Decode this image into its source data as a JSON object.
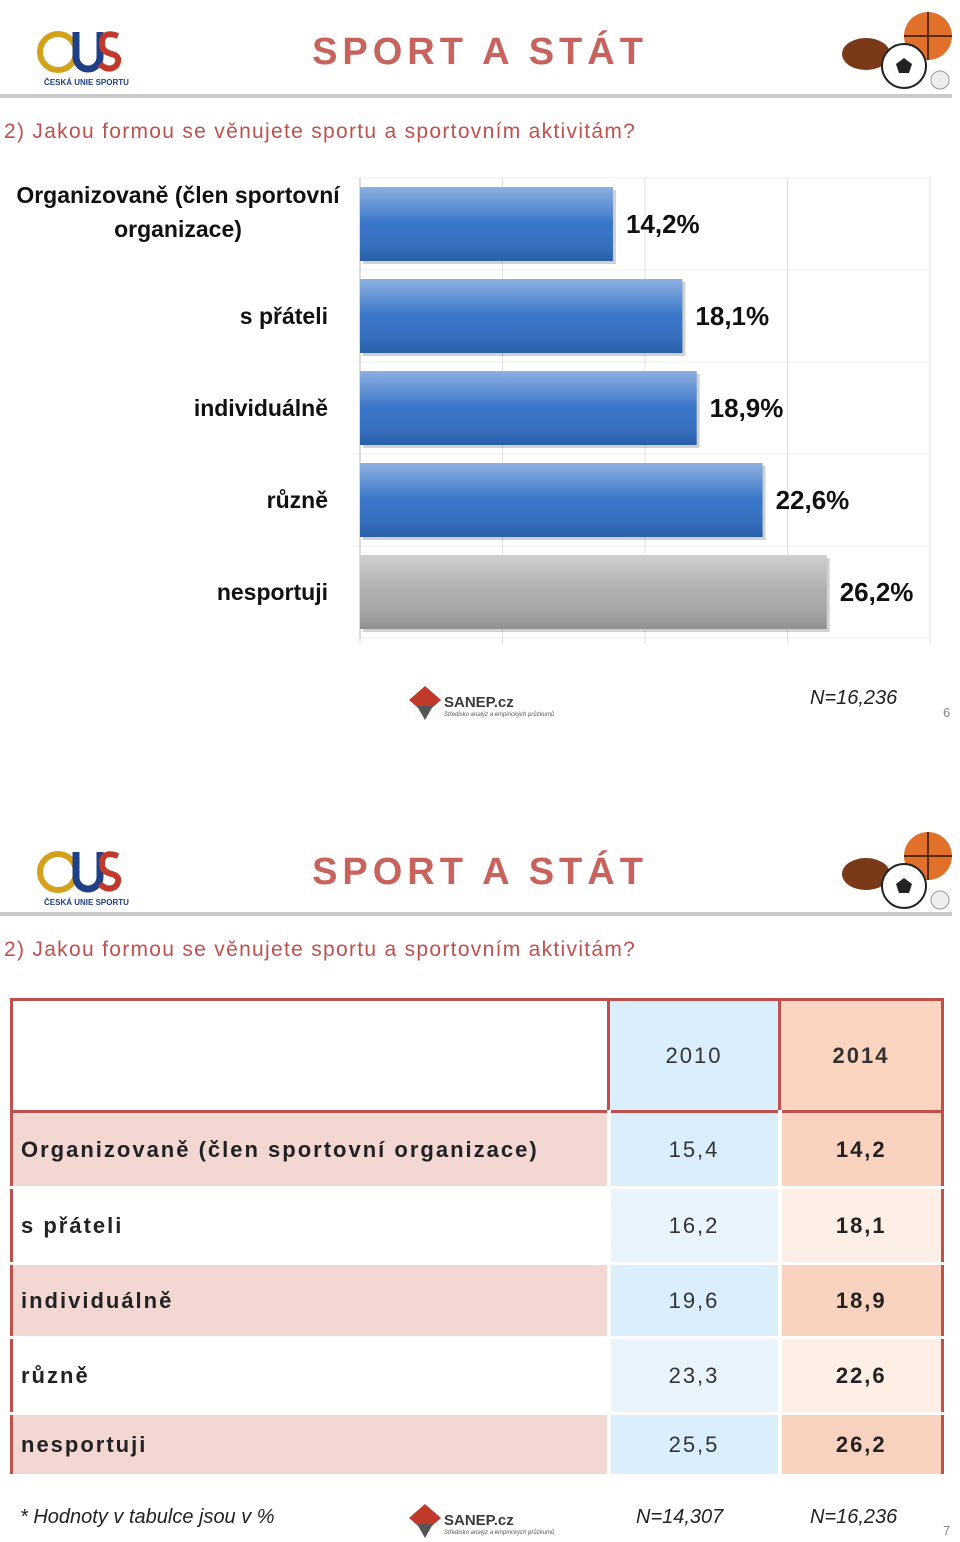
{
  "slide1": {
    "logo_text": "ČESKÁ UNIE SPORTU",
    "title": "SPORT A STÁT",
    "question": "2) Jakou formou se věnujete sportu a sportovním aktivitám?",
    "sanep": "SANEP.cz",
    "sanep_tagline": "Středisko analýz a empirických průzkumů",
    "sample": "N=16,236",
    "page": "6"
  },
  "chart_data": {
    "type": "bar",
    "orientation": "horizontal",
    "categories": [
      "Organizovaně (člen sportovní organizace)",
      "s přáteli",
      "individuálně",
      "různě",
      "nesportuji"
    ],
    "values": [
      14.2,
      18.1,
      18.9,
      22.6,
      26.2
    ],
    "value_labels": [
      "14,2%",
      "18,1%",
      "18,9%",
      "22,6%",
      "26,2%"
    ],
    "colors": [
      "#2f6fc6",
      "#2f6fc6",
      "#2f6fc6",
      "#2f6fc6",
      "#a9a9a9"
    ],
    "xlim": [
      0,
      32
    ],
    "xticks": [
      0,
      8,
      16,
      24,
      32
    ],
    "grid": true
  },
  "slide2": {
    "logo_text": "ČESKÁ UNIE SPORTU",
    "title": "SPORT A STÁT",
    "question": "2) Jakou formou se věnujete sportu a sportovním aktivitám?",
    "table": {
      "columns": [
        "2010",
        "2014"
      ],
      "rows": [
        {
          "label": "Organizovaně (člen sportovní organizace)",
          "values": [
            "15,4",
            "14,2"
          ]
        },
        {
          "label": "s přáteli",
          "values": [
            "16,2",
            "18,1"
          ]
        },
        {
          "label": "individuálně",
          "values": [
            "19,6",
            "18,9"
          ]
        },
        {
          "label": "různě",
          "values": [
            "23,3",
            "22,6"
          ]
        },
        {
          "label": "nesportuji",
          "values": [
            "25,5",
            "26,2"
          ]
        }
      ]
    },
    "note": "* Hodnoty v tabulce jsou v %",
    "sanep": "SANEP.cz",
    "sanep_tagline": "Středisko analýz a empirických průzkumů",
    "sample_2010": "N=14,307",
    "sample_2014": "N=16,236",
    "page": "7"
  }
}
